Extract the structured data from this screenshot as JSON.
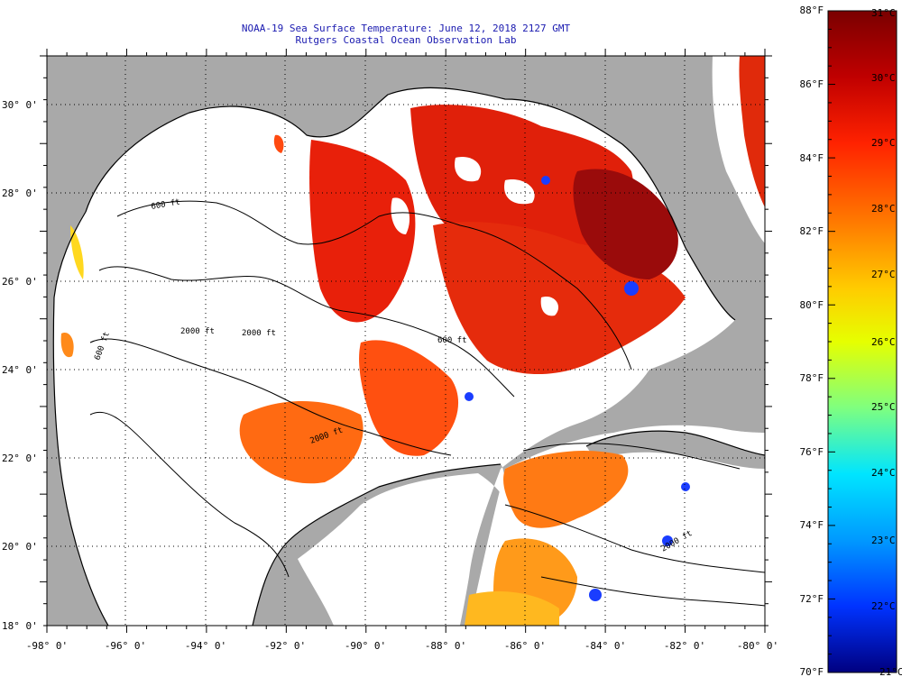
{
  "title_line1": "NOAA-19 Sea Surface Temperature:  June 12, 2018 2127 GMT",
  "title_line2": "Rutgers Coastal Ocean Observation Lab",
  "map": {
    "lon_ticks": [
      "-98° 0'",
      "-96° 0'",
      "-94° 0'",
      "-92° 0'",
      "-90° 0'",
      "-88° 0'",
      "-86° 0'",
      "-84° 0'",
      "-82° 0'",
      "-80° 0'"
    ],
    "lat_ticks": [
      "30° 0'",
      "28° 0'",
      "26° 0'",
      "24° 0'",
      "22° 0'",
      "20° 0'",
      "18° 0'"
    ],
    "lon_range": [
      -98,
      -80
    ],
    "lat_range": [
      18,
      31
    ],
    "contour_labels": [
      "600 ft",
      "2000 ft",
      "600 ft",
      "2000 ft",
      "600 ft",
      "2000 ft",
      "2000 ft"
    ],
    "colors": {
      "land": "#a9a9a9",
      "cloud": "#ffffff",
      "grid": "#000000"
    }
  },
  "colorbar": {
    "fahrenheit_labels": [
      "88°F",
      "86°F",
      "84°F",
      "82°F",
      "80°F",
      "78°F",
      "76°F",
      "74°F",
      "72°F",
      "70°F"
    ],
    "celsius_labels": [
      "31°C",
      "30°C",
      "29°C",
      "28°C",
      "27°C",
      "26°C",
      "25°C",
      "24°C",
      "23°C",
      "22°C",
      "21°C"
    ],
    "range_f": [
      70,
      88
    ],
    "range_c": [
      21,
      31
    ],
    "stops": [
      "#7a0000",
      "#c00000",
      "#ff2200",
      "#ff7a00",
      "#ffcc00",
      "#e6ff00",
      "#7fff7f",
      "#00e5ff",
      "#0099ff",
      "#0033ff",
      "#000080"
    ]
  }
}
